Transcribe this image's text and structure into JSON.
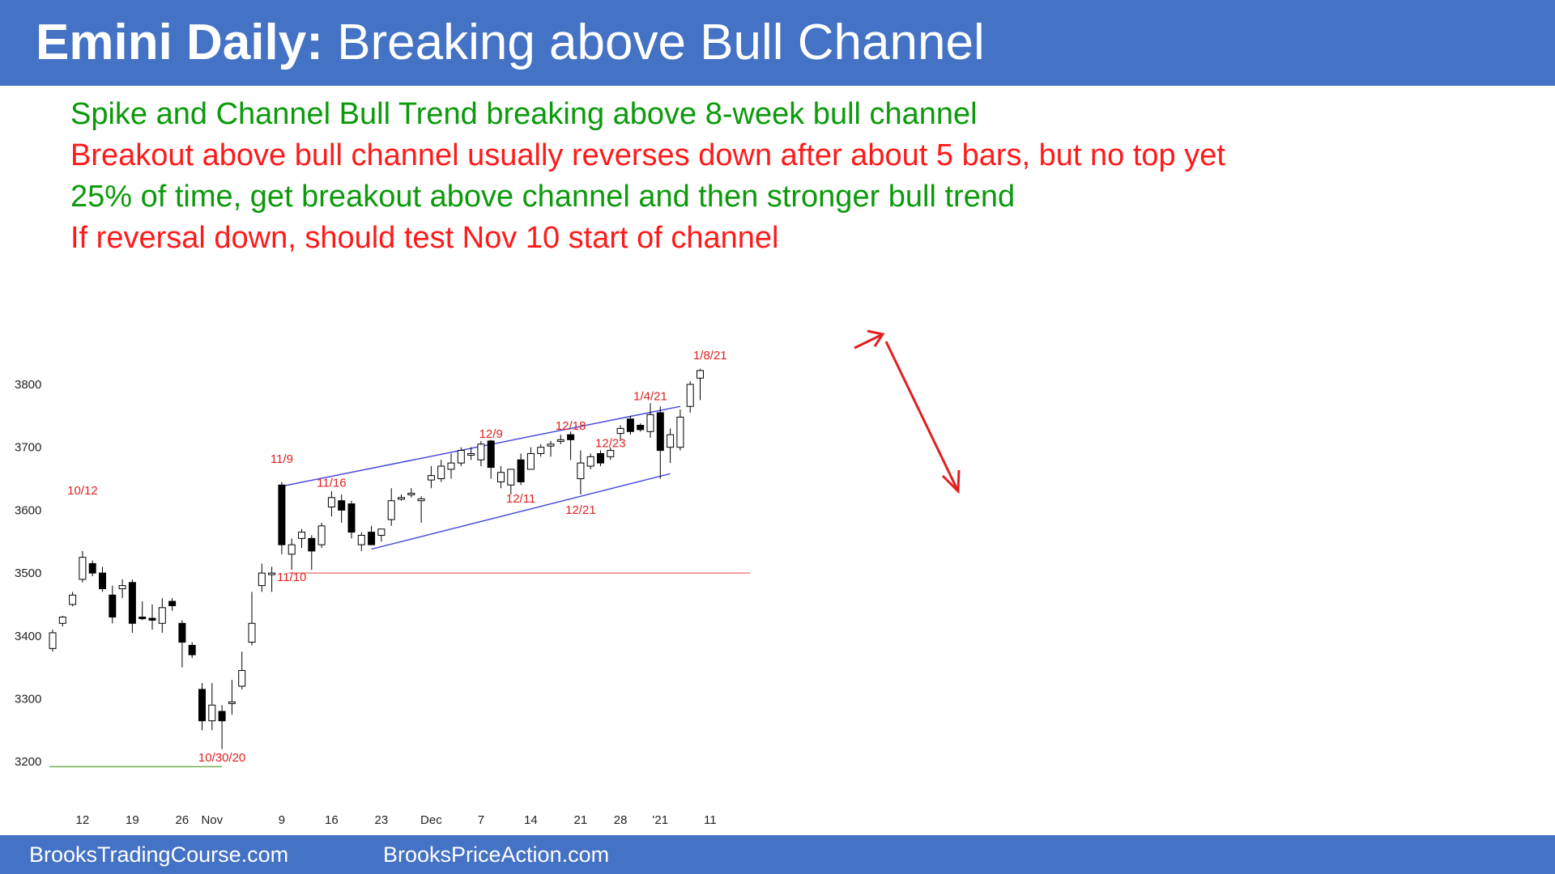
{
  "slide": {
    "title_bold": "Emini Daily:",
    "title_rest": " Breaking above Bull Channel",
    "bullets": [
      {
        "text": "Spike and Channel Bull Trend breaking above 8-week bull channel",
        "color": "#0a9a0a"
      },
      {
        "text": "Breakout above bull channel usually reverses down after about 5 bars, but no top yet",
        "color": "#ff1a1a"
      },
      {
        "text": "25% of time, get breakout above channel and then stronger bull trend",
        "color": "#0a9a0a"
      },
      {
        "text": "If reversal down, should test Nov 10 start of channel",
        "color": "#ff1a1a"
      }
    ],
    "footer_left": "BrooksTradingCourse.com",
    "footer_right": "BrooksPriceAction.com",
    "colors": {
      "header": "#4472c4",
      "channel": "#4a4ae0",
      "annotation": "#e02020",
      "support_line": "#f08080",
      "low_line": "#70b050"
    }
  },
  "chart_data": {
    "type": "candlestick",
    "ylim": [
      3150,
      3860
    ],
    "yticks": [
      3200,
      3300,
      3400,
      3500,
      3600,
      3700,
      3800
    ],
    "xticks": [
      {
        "label": "12",
        "i": 3
      },
      {
        "label": "19",
        "i": 8
      },
      {
        "label": "26",
        "i": 13
      },
      {
        "label": "Nov",
        "i": 16
      },
      {
        "label": "9",
        "i": 23
      },
      {
        "label": "16",
        "i": 28
      },
      {
        "label": "23",
        "i": 33
      },
      {
        "label": "Dec",
        "i": 38
      },
      {
        "label": "7",
        "i": 43
      },
      {
        "label": "14",
        "i": 48
      },
      {
        "label": "21",
        "i": 53
      },
      {
        "label": "28",
        "i": 57
      },
      {
        "label": "'21",
        "i": 61
      },
      {
        "label": "11",
        "i": 66
      }
    ],
    "candles": [
      [
        3380,
        3410,
        3375,
        3405
      ],
      [
        3420,
        3432,
        3415,
        3430
      ],
      [
        3450,
        3470,
        3447,
        3465
      ],
      [
        3490,
        3535,
        3485,
        3525
      ],
      [
        3515,
        3520,
        3495,
        3500
      ],
      [
        3500,
        3510,
        3470,
        3475
      ],
      [
        3465,
        3480,
        3420,
        3430
      ],
      [
        3475,
        3490,
        3460,
        3480
      ],
      [
        3485,
        3490,
        3405,
        3420
      ],
      [
        3430,
        3455,
        3425,
        3428
      ],
      [
        3428,
        3450,
        3410,
        3425
      ],
      [
        3420,
        3460,
        3405,
        3445
      ],
      [
        3455,
        3460,
        3440,
        3448
      ],
      [
        3420,
        3425,
        3350,
        3390
      ],
      [
        3385,
        3390,
        3365,
        3370
      ],
      [
        3315,
        3325,
        3250,
        3265
      ],
      [
        3265,
        3325,
        3250,
        3290
      ],
      [
        3280,
        3290,
        3220,
        3265
      ],
      [
        3295,
        3330,
        3275,
        3295
      ],
      [
        3320,
        3375,
        3315,
        3345
      ],
      [
        3390,
        3470,
        3385,
        3420
      ],
      [
        3480,
        3515,
        3470,
        3500
      ],
      [
        3500,
        3510,
        3470,
        3500
      ],
      [
        3640,
        3645,
        3530,
        3545
      ],
      [
        3530,
        3555,
        3505,
        3545
      ],
      [
        3555,
        3570,
        3540,
        3565
      ],
      [
        3555,
        3560,
        3505,
        3535
      ],
      [
        3545,
        3580,
        3540,
        3575
      ],
      [
        3605,
        3630,
        3590,
        3620
      ],
      [
        3615,
        3625,
        3580,
        3600
      ],
      [
        3610,
        3615,
        3555,
        3565
      ],
      [
        3545,
        3565,
        3535,
        3560
      ],
      [
        3565,
        3575,
        3545,
        3545
      ],
      [
        3560,
        3570,
        3550,
        3570
      ],
      [
        3585,
        3635,
        3575,
        3615
      ],
      [
        3620,
        3625,
        3615,
        3620
      ],
      [
        3627,
        3635,
        3620,
        3627
      ],
      [
        3615,
        3622,
        3580,
        3618
      ],
      [
        3648,
        3670,
        3635,
        3655
      ],
      [
        3650,
        3680,
        3645,
        3670
      ],
      [
        3665,
        3690,
        3650,
        3675
      ],
      [
        3675,
        3700,
        3670,
        3695
      ],
      [
        3688,
        3700,
        3680,
        3690
      ],
      [
        3680,
        3710,
        3670,
        3705
      ],
      [
        3710,
        3712,
        3650,
        3668
      ],
      [
        3645,
        3670,
        3635,
        3660
      ],
      [
        3640,
        3665,
        3625,
        3665
      ],
      [
        3680,
        3690,
        3640,
        3645
      ],
      [
        3665,
        3700,
        3665,
        3690
      ],
      [
        3690,
        3705,
        3685,
        3700
      ],
      [
        3702,
        3710,
        3685,
        3705
      ],
      [
        3710,
        3720,
        3705,
        3712
      ],
      [
        3720,
        3725,
        3680,
        3712
      ],
      [
        3650,
        3695,
        3625,
        3675
      ],
      [
        3670,
        3690,
        3665,
        3685
      ],
      [
        3690,
        3695,
        3670,
        3675
      ],
      [
        3685,
        3700,
        3680,
        3695
      ],
      [
        3722,
        3735,
        3710,
        3730
      ],
      [
        3745,
        3750,
        3720,
        3725
      ],
      [
        3735,
        3738,
        3725,
        3728
      ],
      [
        3725,
        3770,
        3715,
        3752
      ],
      [
        3755,
        3765,
        3650,
        3695
      ],
      [
        3700,
        3730,
        3675,
        3720
      ],
      [
        3700,
        3760,
        3695,
        3748
      ],
      [
        3765,
        3805,
        3755,
        3800
      ],
      [
        3810,
        3825,
        3775,
        3822
      ]
    ],
    "labels": [
      {
        "text": "10/12",
        "i": 3,
        "above": 3625
      },
      {
        "text": "11/9",
        "i": 23,
        "above": 3675
      },
      {
        "text": "11/10",
        "i": 24,
        "below": 3505
      },
      {
        "text": "11/16",
        "i": 28,
        "above": 3637
      },
      {
        "text": "12/9",
        "i": 44,
        "above": 3715
      },
      {
        "text": "12/11",
        "i": 47,
        "below": 3630
      },
      {
        "text": "12/18",
        "i": 52,
        "above": 3728
      },
      {
        "text": "12/21",
        "i": 53,
        "below": 3612
      },
      {
        "text": "12/23",
        "i": 56,
        "above": 3700
      },
      {
        "text": "1/4/21",
        "i": 60,
        "above": 3775
      },
      {
        "text": "1/8/21",
        "i": 66,
        "above": 3840
      },
      {
        "text": "10/30/20",
        "i": 17,
        "below": 3218
      }
    ],
    "channel": {
      "upper": [
        [
          23,
          3638
        ],
        [
          63,
          3765
        ]
      ],
      "lower": [
        [
          32,
          3538
        ],
        [
          62,
          3658
        ]
      ]
    },
    "hlines": [
      {
        "y": 3500,
        "from": 24,
        "to": 70,
        "color": "#f08080"
      },
      {
        "y": 3192,
        "from": 0,
        "to": 17,
        "color": "#70b050"
      }
    ]
  }
}
